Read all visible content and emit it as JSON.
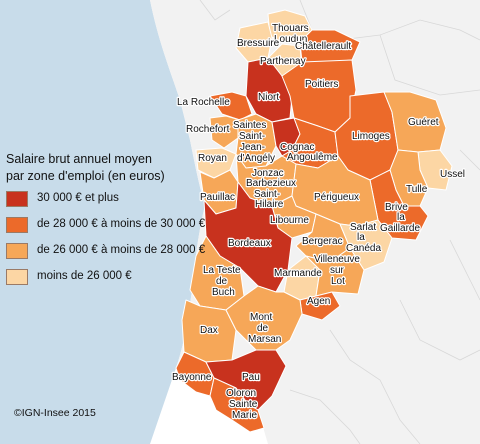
{
  "legend": {
    "title_line1": "Salaire brut annuel moyen",
    "title_line2": "par zone d'emploi (en euros)",
    "items": [
      {
        "label": "30 000 € et plus",
        "color": "#c8321e"
      },
      {
        "label": "de 28 000 € à moins de 30 000 €",
        "color": "#ec6a2a"
      },
      {
        "label": "de 26 000 € à moins de 28 000 €",
        "color": "#f6a758"
      },
      {
        "label": "moins de 26 000 €",
        "color": "#fcd6a4"
      }
    ]
  },
  "credit": "©IGN-Insee 2015",
  "colors": {
    "sea": "#c8dcea",
    "land_outside": "#f2f2f2",
    "border": "#ffffff"
  },
  "zones": [
    {
      "name": "Thouars Loudun",
      "class": "moins de 26 000 €"
    },
    {
      "name": "Bressuire",
      "class": "moins de 26 000 €"
    },
    {
      "name": "Châtellerault",
      "class": "de 28 000 € à moins de 30 000 €"
    },
    {
      "name": "Parthenay",
      "class": "moins de 26 000 €"
    },
    {
      "name": "Niort",
      "class": "30 000 € et plus"
    },
    {
      "name": "Poitiers",
      "class": "de 28 000 € à moins de 30 000 €"
    },
    {
      "name": "La Rochelle",
      "class": "de 28 000 € à moins de 30 000 €"
    },
    {
      "name": "Rochefort",
      "class": "de 26 000 € à moins de 28 000 €"
    },
    {
      "name": "Saintes Saint-Jean-d'Angély",
      "class": "de 26 000 € à moins de 28 000 €"
    },
    {
      "name": "Royan",
      "class": "moins de 26 000 €"
    },
    {
      "name": "Cognac",
      "class": "30 000 € et plus"
    },
    {
      "name": "Angoulême",
      "class": "de 28 000 € à moins de 30 000 €"
    },
    {
      "name": "Limoges",
      "class": "de 28 000 € à moins de 30 000 €"
    },
    {
      "name": "Guéret",
      "class": "de 26 000 € à moins de 28 000 €"
    },
    {
      "name": "Ussel",
      "class": "moins de 26 000 €"
    },
    {
      "name": "Tulle",
      "class": "de 26 000 € à moins de 28 000 €"
    },
    {
      "name": "Brive-la-Gaillarde",
      "class": "de 28 000 € à moins de 30 000 €"
    },
    {
      "name": "Jonzac Barbezieux Saint-Hilaire",
      "class": "de 26 000 € à moins de 28 000 €"
    },
    {
      "name": "Pauillac",
      "class": "de 26 000 € à moins de 28 000 €"
    },
    {
      "name": "Périgueux",
      "class": "de 26 000 € à moins de 28 000 €"
    },
    {
      "name": "Libourne",
      "class": "de 26 000 € à moins de 28 000 €"
    },
    {
      "name": "Bordeaux",
      "class": "30 000 € et plus"
    },
    {
      "name": "Bergerac",
      "class": "de 26 000 € à moins de 28 000 €"
    },
    {
      "name": "Sarlat-la-Canéda",
      "class": "moins de 26 000 €"
    },
    {
      "name": "La Teste-de-Buch",
      "class": "de 26 000 € à moins de 28 000 €"
    },
    {
      "name": "Marmande",
      "class": "moins de 26 000 €"
    },
    {
      "name": "Villeneuve-sur-Lot",
      "class": "de 26 000 € à moins de 28 000 €"
    },
    {
      "name": "Agen",
      "class": "de 28 000 € à moins de 30 000 €"
    },
    {
      "name": "Dax",
      "class": "de 26 000 € à moins de 28 000 €"
    },
    {
      "name": "Mont-de-Marsan",
      "class": "de 26 000 € à moins de 28 000 €"
    },
    {
      "name": "Bayonne",
      "class": "de 28 000 € à moins de 30 000 €"
    },
    {
      "name": "Pau",
      "class": "30 000 € et plus"
    },
    {
      "name": "Oloron-Sainte-Marie",
      "class": "de 28 000 € à moins de 30 000 €"
    }
  ],
  "map_labels": {
    "thouars": "Thouars",
    "loudun": "Loudun",
    "bressuire": "Bressuire",
    "chatellerault": "Châtellerault",
    "parthenay": "Parthenay",
    "niort": "Niort",
    "poitiers": "Poitiers",
    "larochelle": "La Rochelle",
    "saintes": "Saintes",
    "saint": "Saint-",
    "jean": "Jean-",
    "dangely": "d'Angély",
    "rochefort": "Rochefort",
    "cognac": "Cognac",
    "angouleme": "Angoulême",
    "limoges": "Limoges",
    "gueret": "Guéret",
    "royan": "Royan",
    "jonzac": "Jonzac",
    "barbezieux": "Barbezieux",
    "sainthilaire1": "Saint-",
    "sainthilaire2": "Hilaire",
    "ussel": "Ussel",
    "tulle": "Tulle",
    "perigueux": "Périgueux",
    "pauillac": "Pauillac",
    "brive": "Brive",
    "brivela": "la",
    "gaillarde": "Gaillarde",
    "libourne": "Libourne",
    "sarlat": "Sarlat",
    "sarlatla": "la",
    "caneda": "Canéda",
    "bordeaux": "Bordeaux",
    "bergerac": "Bergerac",
    "villeneuve": "Villeneuve",
    "sur": "sur",
    "lot": "Lot",
    "lateste": "La Teste",
    "de": "de",
    "buch": "Buch",
    "marmande": "Marmande",
    "agen": "Agen",
    "dax": "Dax",
    "mont": "Mont",
    "monde": "de",
    "marsan": "Marsan",
    "bayonne": "Bayonne",
    "pau": "Pau",
    "oloron": "Oloron",
    "sainte": "Sainte",
    "marie": "Marie"
  }
}
